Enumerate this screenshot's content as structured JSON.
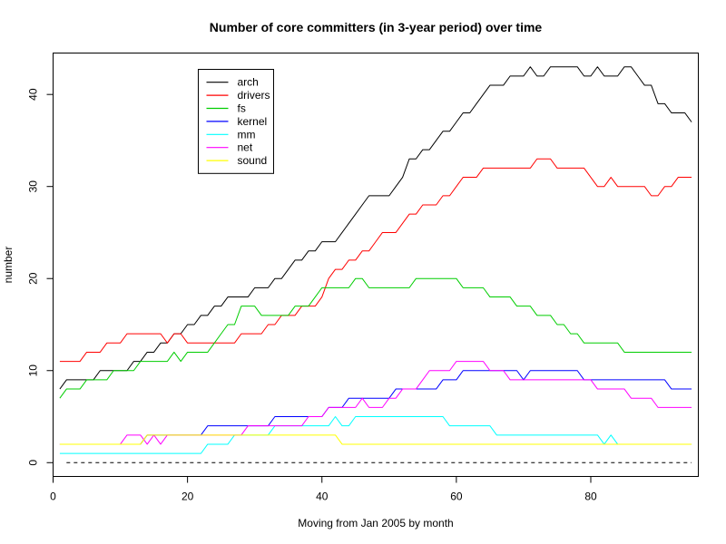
{
  "chart_data": {
    "type": "line",
    "title": "Number of core committers (in 3-year period) over time",
    "xlabel": "Moving from Jan 2005 by month",
    "ylabel": "number",
    "xlim": [
      0,
      96
    ],
    "ylim": [
      -1.5,
      44.5
    ],
    "x_ticks": [
      0,
      20,
      40,
      60,
      80
    ],
    "y_ticks": [
      0,
      10,
      20,
      30,
      40
    ],
    "legend_position": "top-left",
    "grid": false,
    "baseline": {
      "y": 0,
      "x_from": 2,
      "x_to": 95,
      "style": "dashed"
    },
    "x": [
      1,
      2,
      3,
      4,
      5,
      6,
      7,
      8,
      9,
      10,
      11,
      12,
      13,
      14,
      15,
      16,
      17,
      18,
      19,
      20,
      21,
      22,
      23,
      24,
      25,
      26,
      27,
      28,
      29,
      30,
      31,
      32,
      33,
      34,
      35,
      36,
      37,
      38,
      39,
      40,
      41,
      42,
      43,
      44,
      45,
      46,
      47,
      48,
      49,
      50,
      51,
      52,
      53,
      54,
      55,
      56,
      57,
      58,
      59,
      60,
      61,
      62,
      63,
      64,
      65,
      66,
      67,
      68,
      69,
      70,
      71,
      72,
      73,
      74,
      75,
      76,
      77,
      78,
      79,
      80,
      81,
      82,
      83,
      84,
      85,
      86,
      87,
      88,
      89,
      90,
      91,
      92,
      93,
      94,
      95
    ],
    "series": [
      {
        "name": "arch",
        "color": "#000000",
        "values": [
          8,
          9,
          9,
          9,
          9,
          9,
          10,
          10,
          10,
          10,
          10,
          11,
          11,
          12,
          12,
          13,
          13,
          14,
          14,
          15,
          15,
          16,
          16,
          17,
          17,
          18,
          18,
          18,
          18,
          19,
          19,
          19,
          20,
          20,
          21,
          22,
          22,
          23,
          23,
          24,
          24,
          24,
          25,
          26,
          27,
          28,
          29,
          29,
          29,
          29,
          30,
          31,
          33,
          33,
          34,
          34,
          35,
          36,
          36,
          37,
          38,
          38,
          39,
          40,
          41,
          41,
          41,
          42,
          42,
          42,
          43,
          42,
          42,
          43,
          43,
          43,
          43,
          43,
          42,
          42,
          43,
          42,
          42,
          42,
          43,
          43,
          42,
          41,
          41,
          39,
          39,
          38,
          38,
          38,
          37
        ]
      },
      {
        "name": "drivers",
        "color": "#ff0000",
        "values": [
          11,
          11,
          11,
          11,
          12,
          12,
          12,
          13,
          13,
          13,
          14,
          14,
          14,
          14,
          14,
          14,
          13,
          14,
          14,
          13,
          13,
          13,
          13,
          13,
          13,
          13,
          13,
          14,
          14,
          14,
          14,
          15,
          15,
          16,
          16,
          16,
          17,
          17,
          17,
          18,
          20,
          21,
          21,
          22,
          22,
          23,
          23,
          24,
          25,
          25,
          25,
          26,
          27,
          27,
          28,
          28,
          28,
          29,
          29,
          30,
          31,
          31,
          31,
          32,
          32,
          32,
          32,
          32,
          32,
          32,
          32,
          33,
          33,
          33,
          32,
          32,
          32,
          32,
          32,
          31,
          30,
          30,
          31,
          30,
          30,
          30,
          30,
          30,
          29,
          29,
          30,
          30,
          31,
          31,
          31
        ]
      },
      {
        "name": "fs",
        "color": "#00cd00",
        "values": [
          7,
          8,
          8,
          8,
          9,
          9,
          9,
          9,
          10,
          10,
          10,
          10,
          11,
          11,
          11,
          11,
          11,
          12,
          11,
          12,
          12,
          12,
          12,
          13,
          14,
          15,
          15,
          17,
          17,
          17,
          16,
          16,
          16,
          16,
          16,
          17,
          17,
          17,
          18,
          19,
          19,
          19,
          19,
          19,
          20,
          20,
          19,
          19,
          19,
          19,
          19,
          19,
          19,
          20,
          20,
          20,
          20,
          20,
          20,
          20,
          19,
          19,
          19,
          19,
          18,
          18,
          18,
          18,
          17,
          17,
          17,
          16,
          16,
          16,
          15,
          15,
          14,
          14,
          13,
          13,
          13,
          13,
          13,
          13,
          12,
          12,
          12,
          12,
          12,
          12,
          12,
          12,
          12,
          12,
          12
        ]
      },
      {
        "name": "kernel",
        "color": "#0000ff",
        "values": [
          2,
          2,
          2,
          2,
          2,
          2,
          2,
          2,
          2,
          2,
          2,
          2,
          2,
          3,
          3,
          3,
          3,
          3,
          3,
          3,
          3,
          3,
          4,
          4,
          4,
          4,
          4,
          4,
          4,
          4,
          4,
          4,
          5,
          5,
          5,
          5,
          5,
          5,
          5,
          5,
          6,
          6,
          6,
          7,
          7,
          7,
          7,
          7,
          7,
          7,
          8,
          8,
          8,
          8,
          8,
          8,
          8,
          9,
          9,
          9,
          10,
          10,
          10,
          10,
          10,
          10,
          10,
          10,
          10,
          9,
          10,
          10,
          10,
          10,
          10,
          10,
          10,
          10,
          9,
          9,
          9,
          9,
          9,
          9,
          9,
          9,
          9,
          9,
          9,
          9,
          9,
          8,
          8,
          8,
          8
        ]
      },
      {
        "name": "mm",
        "color": "#00ffff",
        "values": [
          1,
          1,
          1,
          1,
          1,
          1,
          1,
          1,
          1,
          1,
          1,
          1,
          1,
          1,
          1,
          1,
          1,
          1,
          1,
          1,
          1,
          1,
          2,
          2,
          2,
          2,
          3,
          3,
          3,
          3,
          3,
          3,
          4,
          4,
          4,
          4,
          4,
          4,
          4,
          4,
          4,
          5,
          4,
          4,
          5,
          5,
          5,
          5,
          5,
          5,
          5,
          5,
          5,
          5,
          5,
          5,
          5,
          5,
          4,
          4,
          4,
          4,
          4,
          4,
          4,
          3,
          3,
          3,
          3,
          3,
          3,
          3,
          3,
          3,
          3,
          3,
          3,
          3,
          3,
          3,
          3,
          2,
          3,
          2,
          2,
          2,
          2,
          2,
          2,
          2,
          2,
          2,
          2,
          2,
          2
        ]
      },
      {
        "name": "net",
        "color": "#ff00ff",
        "values": [
          2,
          2,
          2,
          2,
          2,
          2,
          2,
          2,
          2,
          2,
          3,
          3,
          3,
          2,
          3,
          2,
          3,
          3,
          3,
          3,
          3,
          3,
          3,
          3,
          3,
          3,
          3,
          3,
          4,
          4,
          4,
          4,
          4,
          4,
          4,
          4,
          4,
          5,
          5,
          5,
          6,
          6,
          6,
          6,
          6,
          7,
          6,
          6,
          6,
          7,
          7,
          8,
          8,
          8,
          9,
          10,
          10,
          10,
          10,
          11,
          11,
          11,
          11,
          11,
          10,
          10,
          10,
          9,
          9,
          9,
          9,
          9,
          9,
          9,
          9,
          9,
          9,
          9,
          9,
          9,
          8,
          8,
          8,
          8,
          8,
          7,
          7,
          7,
          7,
          6,
          6,
          6,
          6,
          6,
          6
        ]
      },
      {
        "name": "sound",
        "color": "#ffff00",
        "values": [
          2,
          2,
          2,
          2,
          2,
          2,
          2,
          2,
          2,
          2,
          2,
          2,
          2,
          3,
          3,
          3,
          3,
          3,
          3,
          3,
          3,
          3,
          3,
          3,
          3,
          3,
          3,
          3,
          3,
          3,
          3,
          3,
          3,
          3,
          3,
          3,
          3,
          3,
          3,
          3,
          3,
          3,
          2,
          2,
          2,
          2,
          2,
          2,
          2,
          2,
          2,
          2,
          2,
          2,
          2,
          2,
          2,
          2,
          2,
          2,
          2,
          2,
          2,
          2,
          2,
          2,
          2,
          2,
          2,
          2,
          2,
          2,
          2,
          2,
          2,
          2,
          2,
          2,
          2,
          2,
          2,
          2,
          2,
          2,
          2,
          2,
          2,
          2,
          2,
          2,
          2,
          2,
          2,
          2,
          2
        ]
      }
    ]
  }
}
